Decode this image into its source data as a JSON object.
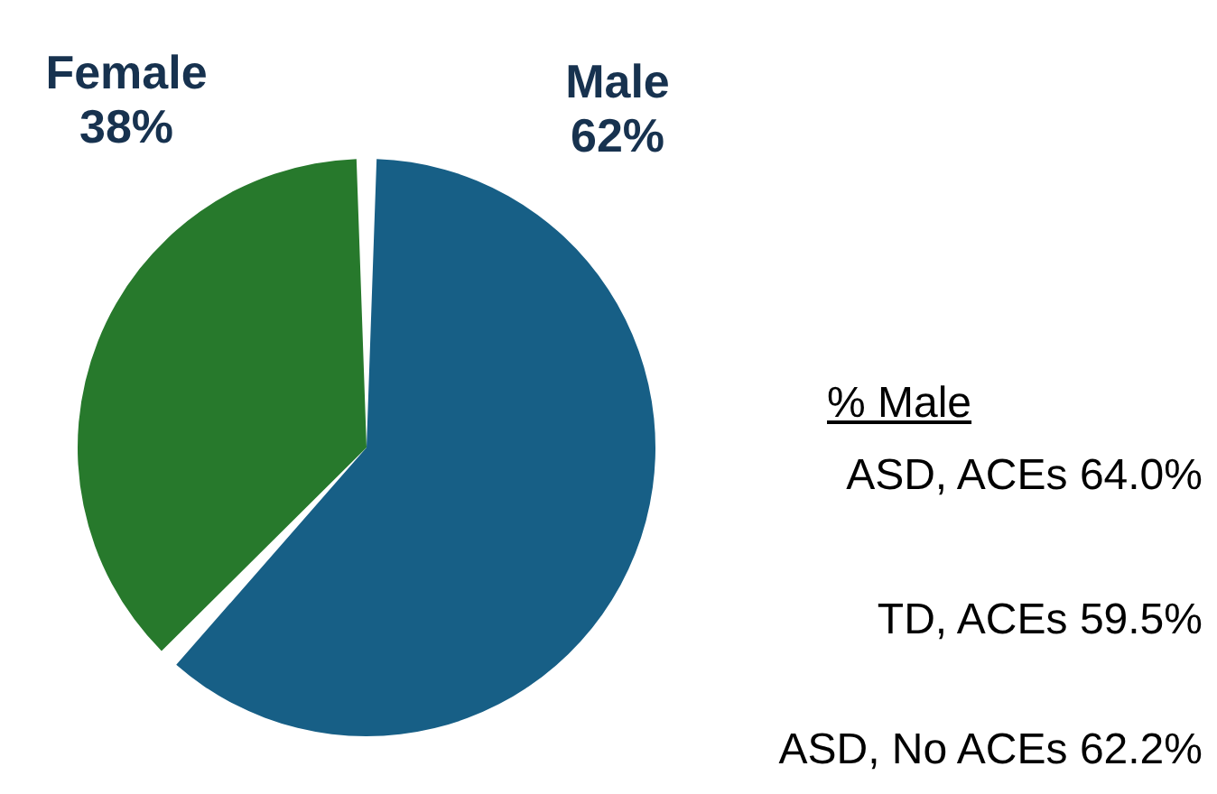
{
  "chart_data": {
    "type": "pie",
    "categories": [
      "Male",
      "Female"
    ],
    "values": [
      62,
      38
    ],
    "value_labels": [
      "62%",
      "38%"
    ],
    "colors": [
      "#175f86",
      "#27792c"
    ],
    "legend": false,
    "annotations": [
      "% Male",
      "ASD, ACEs 64.0%",
      "TD, ACEs 59.5%",
      "ASD, No ACEs 62.2%"
    ]
  }
}
